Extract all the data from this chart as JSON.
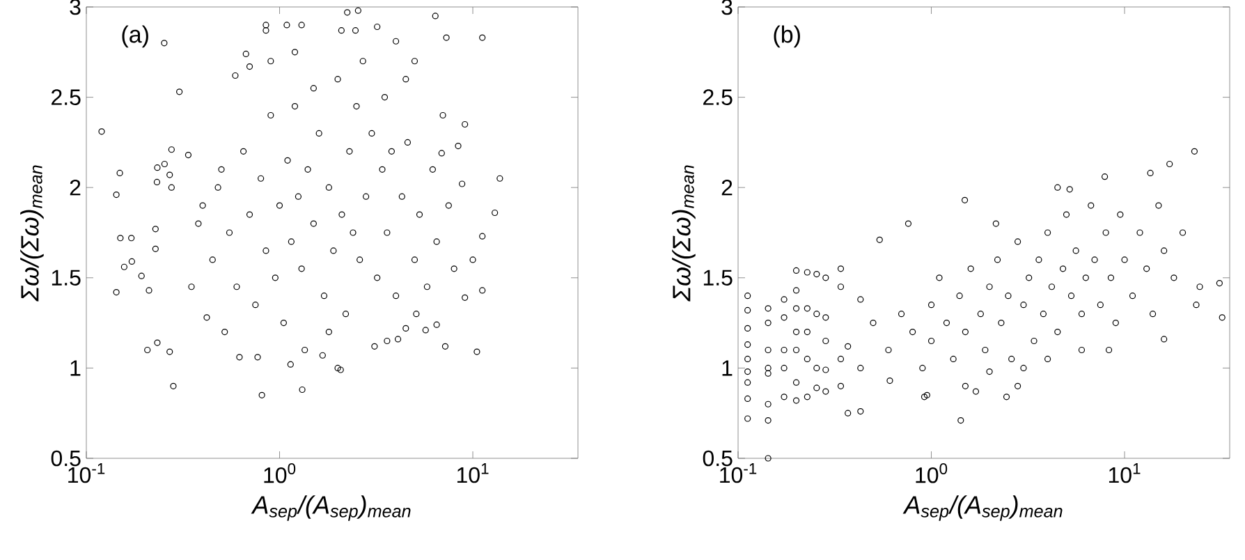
{
  "chart_data": [
    {
      "type": "scatter",
      "annotations": [
        "(a)"
      ],
      "xlabel": "A$_{sep}$/(A$_{sep}$)$_{mean}$",
      "ylabel": "Σω/(Σω)$_{mean}$",
      "log": "x",
      "marker": "circle",
      "color": "#000000",
      "xlim": [
        0.1,
        35
      ],
      "ylim": [
        0.5,
        3
      ],
      "xticks": [
        {
          "value": 0.1,
          "label": "10$^{-1}$"
        },
        {
          "value": 1,
          "label": "10$^{0}$"
        },
        {
          "value": 10,
          "label": "10$^{1}$"
        }
      ],
      "yticks": [
        0.5,
        1,
        1.5,
        2,
        2.5,
        3
      ],
      "x": [
        0.12,
        0.143,
        0.149,
        0.143,
        0.15,
        0.157,
        0.171,
        0.172,
        0.193,
        0.207,
        0.211,
        0.228,
        0.228,
        0.232,
        0.233,
        0.233,
        0.253,
        0.254,
        0.27,
        0.27,
        0.276,
        0.276,
        0.282,
        0.303,
        0.337,
        0.85,
        0.85,
        1.09,
        1.3,
        2.24,
        2.55,
        3.2,
        6.4,
        11.2,
        7.3,
        2.09,
        2.47,
        4.0,
        0.59,
        0.7,
        0.67,
        13.8,
        13.0,
        11.2,
        10.5,
        11.2,
        10.0,
        9.1,
        9.1,
        8.4,
        8.8,
        7.2,
        6.9,
        0.81,
        1.31,
        1.14,
        2.07,
        0.62,
        0.77,
        1.67,
        3.1,
        3.6,
        4.1,
        4.5,
        5.7,
        5.1,
        6.5,
        0.4,
        0.45,
        0.5,
        0.55,
        0.6,
        0.65,
        0.7,
        0.75,
        0.8,
        0.85,
        0.9,
        0.95,
        1.0,
        1.05,
        1.1,
        1.15,
        1.2,
        1.25,
        1.3,
        1.4,
        1.5,
        1.6,
        1.7,
        1.8,
        1.9,
        2.0,
        2.1,
        2.2,
        2.3,
        2.4,
        2.5,
        2.6,
        2.8,
        3.0,
        3.2,
        3.4,
        3.6,
        3.8,
        4.0,
        4.3,
        4.6,
        5.0,
        5.3,
        5.8,
        6.2,
        6.5,
        7.0,
        7.5,
        8.0,
        0.35,
        0.38,
        0.42,
        0.48,
        0.52,
        1.2,
        1.5,
        0.9,
        2.7,
        1.35,
        1.8,
        4.5,
        5.0,
        3.5,
        2.0
      ],
      "values": [
        2.31,
        1.96,
        2.08,
        1.42,
        1.72,
        1.56,
        1.72,
        1.59,
        1.51,
        1.1,
        1.43,
        1.77,
        1.66,
        2.03,
        2.11,
        1.14,
        2.8,
        2.13,
        2.07,
        1.09,
        2.21,
        2.0,
        0.9,
        2.53,
        2.18,
        2.9,
        2.87,
        2.9,
        2.9,
        2.97,
        2.98,
        2.89,
        2.95,
        2.83,
        2.83,
        2.87,
        2.87,
        2.81,
        2.62,
        2.67,
        2.74,
        2.05,
        1.86,
        1.73,
        1.09,
        1.43,
        1.6,
        1.39,
        2.35,
        2.23,
        2.02,
        1.12,
        2.19,
        0.85,
        0.88,
        1.02,
        0.99,
        1.06,
        1.06,
        1.07,
        1.12,
        1.15,
        1.16,
        1.22,
        1.21,
        1.3,
        1.24,
        1.9,
        1.6,
        2.1,
        1.75,
        1.45,
        2.2,
        1.85,
        1.35,
        2.05,
        1.65,
        2.4,
        1.5,
        1.9,
        1.25,
        2.15,
        1.7,
        2.45,
        1.95,
        1.55,
        2.1,
        1.8,
        2.3,
        1.4,
        2.0,
        1.65,
        2.6,
        1.85,
        1.3,
        2.2,
        1.75,
        2.45,
        1.6,
        1.95,
        2.3,
        1.5,
        2.1,
        1.75,
        2.2,
        1.4,
        1.95,
        2.25,
        1.6,
        1.85,
        1.45,
        2.1,
        1.7,
        2.4,
        1.9,
        1.55,
        1.45,
        1.8,
        1.28,
        2.0,
        1.2,
        2.75,
        2.55,
        2.7,
        2.7,
        1.1,
        1.2,
        2.6,
        2.7,
        2.5,
        1.0
      ]
    },
    {
      "type": "scatter",
      "annotations": [
        "(b)"
      ],
      "xlabel": "A$_{sep}$/(A$_{sep}$)$_{mean}$",
      "ylabel": "Σω/(Σω)$_{mean}$",
      "log": "x",
      "marker": "circle",
      "color": "#000000",
      "xlim": [
        0.1,
        35
      ],
      "ylim": [
        0.5,
        3
      ],
      "xticks": [
        {
          "value": 0.1,
          "label": "10$^{-1}$"
        },
        {
          "value": 1,
          "label": "10$^{0}$"
        },
        {
          "value": 10,
          "label": "10$^{1}$"
        }
      ],
      "yticks": [
        0.5,
        1,
        1.5,
        2,
        2.5,
        3
      ],
      "x": [
        0.112,
        0.112,
        0.112,
        0.112,
        0.112,
        0.112,
        0.112,
        0.112,
        0.112,
        0.143,
        0.143,
        0.143,
        0.143,
        0.143,
        0.143,
        0.143,
        0.143,
        0.173,
        0.173,
        0.173,
        0.173,
        0.173,
        0.2,
        0.2,
        0.2,
        0.2,
        0.2,
        0.2,
        0.2,
        0.228,
        0.228,
        0.228,
        0.228,
        0.228,
        0.255,
        0.255,
        0.255,
        0.255,
        0.284,
        0.284,
        0.284,
        0.284,
        0.284,
        0.34,
        0.34,
        0.34,
        0.34,
        0.37,
        0.37,
        0.43,
        0.43,
        0.43,
        0.54,
        1.49,
        0.76,
        2.16,
        1.42,
        2.45,
        23,
        31,
        32,
        24.5,
        23.5,
        17.1,
        13.6,
        7.9,
        4.5,
        5.2,
        0.92,
        0.61,
        16.0,
        8.3,
        0.5,
        0.6,
        0.7,
        0.8,
        0.9,
        1.0,
        1.0,
        1.1,
        1.2,
        1.3,
        1.4,
        1.5,
        1.6,
        1.8,
        1.9,
        2.0,
        2.2,
        2.3,
        2.5,
        2.6,
        2.8,
        3.0,
        3.2,
        3.4,
        3.6,
        3.8,
        4.0,
        4.2,
        4.5,
        4.8,
        5.0,
        5.3,
        5.6,
        6.0,
        6.3,
        6.7,
        7.0,
        7.5,
        8.0,
        8.5,
        9.0,
        9.5,
        10,
        11,
        12,
        13,
        14,
        15,
        16,
        18,
        20,
        1.5,
        2.0,
        3.0,
        4.0,
        6.0,
        0.95,
        1.7,
        2.8
      ],
      "values": [
        1.4,
        1.32,
        1.22,
        1.13,
        1.05,
        0.98,
        0.92,
        0.83,
        0.72,
        1.33,
        1.25,
        1.1,
        1.0,
        0.97,
        0.8,
        0.71,
        0.5,
        1.38,
        1.28,
        1.1,
        1.0,
        0.84,
        1.54,
        1.43,
        1.33,
        1.2,
        1.1,
        0.92,
        0.82,
        1.53,
        1.33,
        1.2,
        1.05,
        0.84,
        1.52,
        1.3,
        1.0,
        0.89,
        1.5,
        1.28,
        1.15,
        0.99,
        0.87,
        1.55,
        1.45,
        1.05,
        0.9,
        0.75,
        1.12,
        0.76,
        1.38,
        1.0,
        1.71,
        1.93,
        1.8,
        1.8,
        0.71,
        0.84,
        2.2,
        1.47,
        1.28,
        1.45,
        1.35,
        2.13,
        2.08,
        2.06,
        2.0,
        1.99,
        0.84,
        0.93,
        1.16,
        1.1,
        1.25,
        1.1,
        1.3,
        1.2,
        1.0,
        1.35,
        1.15,
        1.5,
        1.25,
        1.05,
        1.4,
        1.2,
        1.55,
        1.3,
        1.1,
        1.45,
        1.6,
        1.25,
        1.4,
        1.05,
        1.7,
        1.35,
        1.5,
        1.15,
        1.6,
        1.3,
        1.75,
        1.45,
        1.2,
        1.55,
        1.85,
        1.4,
        1.65,
        1.3,
        1.5,
        1.9,
        1.6,
        1.35,
        1.75,
        1.5,
        1.25,
        1.85,
        1.6,
        1.4,
        1.75,
        1.55,
        1.3,
        1.9,
        1.65,
        1.5,
        1.75,
        0.9,
        0.98,
        1.0,
        1.05,
        1.1,
        0.85,
        0.87,
        0.9
      ]
    }
  ]
}
